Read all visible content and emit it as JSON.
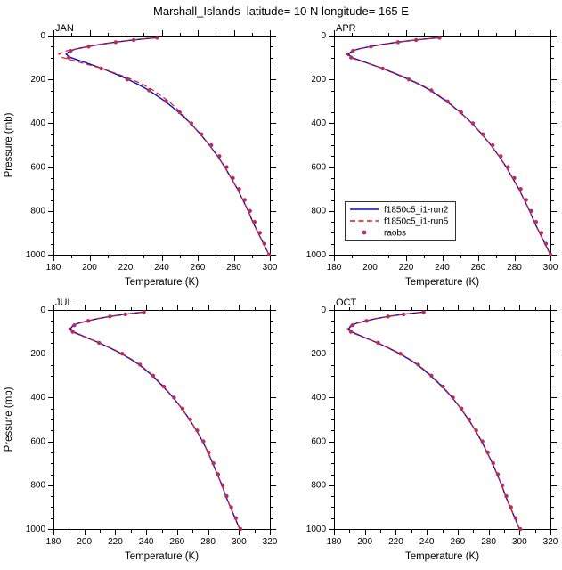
{
  "chart_data": {
    "type": "line",
    "title": "Marshall_Islands  latitude= 10 N longitude= 165 E",
    "xlabel": "Temperature (K)",
    "ylabel": "Pressure (mb)",
    "ylim": [
      0,
      1000
    ],
    "y_inverted": true,
    "y_major_step": 200,
    "y_minor_step": 50,
    "x_minor_step": 10,
    "colors": {
      "run2": "#0a0ac8",
      "run5": "#dc1a1a",
      "raobs": "#b03060",
      "frame": "#000000"
    },
    "levels": [
      1000,
      950,
      900,
      850,
      800,
      750,
      700,
      650,
      600,
      550,
      500,
      450,
      400,
      350,
      300,
      250,
      225,
      200,
      175,
      150,
      125,
      100,
      85,
      70,
      60,
      50,
      40,
      30,
      25,
      20,
      15,
      10
    ],
    "raobs_levels": [
      1000,
      950,
      900,
      850,
      800,
      750,
      700,
      650,
      600,
      550,
      500,
      450,
      400,
      350,
      300,
      250,
      200,
      150,
      100,
      70,
      50,
      30,
      20,
      10
    ],
    "panels": [
      {
        "label": "JAN",
        "xlim": [
          180,
          300
        ],
        "x_major_step": 20,
        "show_ylabel": true,
        "has_legend": false,
        "run2": [
          299.5,
          296.5,
          293.5,
          290.5,
          288,
          285,
          282,
          278.5,
          275,
          271,
          266.5,
          261.5,
          256,
          249.5,
          242,
          233,
          227.5,
          221.5,
          214.5,
          207,
          198.5,
          189.5,
          187,
          189,
          193,
          199,
          206,
          214,
          219,
          224,
          230,
          237
        ],
        "run5": [
          299.5,
          296.5,
          293.5,
          290.5,
          288,
          285,
          282,
          278.5,
          275,
          271,
          266.5,
          261.5,
          256,
          250.5,
          244,
          235.5,
          230,
          223.5,
          215.5,
          207,
          196,
          185,
          183,
          187,
          193,
          199,
          206,
          214,
          219,
          224,
          230,
          237
        ],
        "raobs": [
          299.5,
          297,
          294.5,
          291.5,
          289,
          286,
          283,
          279.5,
          276,
          272,
          267.5,
          262,
          256.5,
          250,
          242.5,
          233,
          221,
          206.5,
          188.5,
          189.5,
          199.5,
          214.5,
          224.5,
          237.5
        ]
      },
      {
        "label": "APR",
        "xlim": [
          180,
          300
        ],
        "x_major_step": 20,
        "show_ylabel": false,
        "has_legend": true,
        "run2": [
          300,
          297,
          294,
          291,
          288.5,
          285.5,
          282.5,
          279,
          275.5,
          271.5,
          267,
          262,
          256.5,
          250,
          242.5,
          233.5,
          228,
          221.5,
          214.5,
          207,
          198.5,
          190,
          188,
          190,
          194,
          200,
          207,
          215,
          220,
          225,
          231,
          238
        ],
        "run5": [
          300,
          297,
          294,
          291,
          288.5,
          285.5,
          282.5,
          279,
          275.5,
          271.5,
          267,
          262,
          256.5,
          250,
          243,
          234,
          228.5,
          222,
          215,
          207.5,
          198,
          189,
          187,
          189.5,
          194,
          200,
          207,
          215,
          220,
          225,
          231,
          238
        ],
        "raobs": [
          300,
          297.5,
          295,
          292,
          289.5,
          286.5,
          283.5,
          280,
          276.5,
          272.5,
          268,
          262.5,
          257,
          250.5,
          243,
          234,
          221.5,
          207,
          189.5,
          190.5,
          200.5,
          215.5,
          225.5,
          238.5
        ]
      },
      {
        "label": "JUL",
        "xlim": [
          180,
          320
        ],
        "x_major_step": 20,
        "show_ylabel": true,
        "has_legend": false,
        "run2": [
          300.5,
          297.5,
          294.5,
          291.5,
          289,
          286,
          283,
          280,
          276.5,
          272.5,
          268,
          263,
          257.5,
          251,
          244,
          235.5,
          230,
          224,
          217,
          209.5,
          201,
          193,
          191,
          193,
          196.5,
          202,
          208.5,
          216,
          221,
          226,
          231.5,
          238
        ],
        "run5": [
          300.5,
          297.5,
          294.5,
          291.5,
          289,
          286,
          283,
          280,
          276.5,
          272.5,
          268,
          263,
          257.5,
          251.5,
          244.5,
          236,
          230.5,
          224.5,
          217.5,
          210,
          200.5,
          192,
          190,
          192.5,
          196.5,
          202,
          208.5,
          216,
          221,
          226,
          231.5,
          238
        ],
        "raobs": [
          301,
          298,
          295,
          292,
          289.5,
          286.5,
          283.5,
          280.5,
          277,
          273,
          268.5,
          263.5,
          258,
          251.5,
          244.5,
          236,
          224.5,
          209.5,
          192.5,
          193.5,
          202.5,
          216.5,
          226.5,
          238.5
        ]
      },
      {
        "label": "OCT",
        "xlim": [
          180,
          320
        ],
        "x_major_step": 20,
        "show_ylabel": false,
        "has_legend": false,
        "run2": [
          300,
          297,
          294,
          291,
          288.5,
          285.5,
          282.5,
          279,
          275.5,
          271.5,
          267,
          262,
          256.5,
          250,
          242.5,
          234,
          228.5,
          222.5,
          215.5,
          208,
          199.5,
          191.5,
          189.5,
          191.5,
          195,
          200.5,
          207,
          214.5,
          219.5,
          224.5,
          230.5,
          237.5
        ],
        "run5": [
          300,
          297,
          294,
          291,
          288.5,
          285.5,
          282.5,
          279,
          275.5,
          271.5,
          267,
          262,
          256.5,
          250.5,
          243,
          234.5,
          229,
          223,
          216,
          208.5,
          199,
          190.5,
          188.5,
          191,
          195,
          200.5,
          207,
          214.5,
          219.5,
          224.5,
          230.5,
          237.5
        ],
        "raobs": [
          300.5,
          297.5,
          294.5,
          291.5,
          289,
          286,
          283,
          279.5,
          276,
          272,
          267.5,
          262.5,
          257,
          250.5,
          243,
          234.5,
          223,
          208.5,
          191,
          192,
          201,
          215,
          225,
          238
        ]
      }
    ],
    "legend": {
      "position": "inside-APR-lower-left",
      "entries": [
        {
          "label": "f1850c5_i1-run2",
          "style": "solid",
          "color": "#0a0ac8"
        },
        {
          "label": "f1850c5_i1-run5",
          "style": "dashed",
          "color": "#dc1a1a"
        },
        {
          "label": "raobs",
          "style": "marker",
          "color": "#b03060"
        }
      ]
    }
  }
}
